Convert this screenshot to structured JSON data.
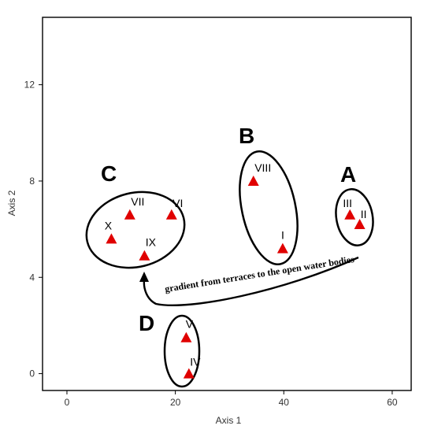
{
  "chart_data": {
    "type": "scatter",
    "title": "",
    "xlabel": "Axis 1",
    "ylabel": "Axis 2",
    "xlim": [
      -4.5,
      63.5
    ],
    "ylim": [
      -0.7,
      14.8
    ],
    "xticks": [
      0,
      20,
      40,
      60
    ],
    "yticks": [
      0,
      4,
      8,
      12
    ],
    "grid": false,
    "marker_color": "#e00000",
    "points": [
      {
        "label": "I",
        "x": 39.8,
        "y": 5.2
      },
      {
        "label": "II",
        "x": 54,
        "y": 6.2
      },
      {
        "label": "III",
        "x": 52.2,
        "y": 6.6
      },
      {
        "label": "IV",
        "x": 22.5,
        "y": 0
      },
      {
        "label": "V",
        "x": 22,
        "y": 1.5
      },
      {
        "label": "VI",
        "x": 19.3,
        "y": 6.6
      },
      {
        "label": "VII",
        "x": 11.6,
        "y": 6.6
      },
      {
        "label": "VIII",
        "x": 34.4,
        "y": 8
      },
      {
        "label": "IX",
        "x": 14.3,
        "y": 4.9
      },
      {
        "label": "X",
        "x": 8.2,
        "y": 5.6
      }
    ],
    "groups": [
      {
        "label": "A",
        "members": [
          "II",
          "III"
        ]
      },
      {
        "label": "B",
        "members": [
          "VIII",
          "I"
        ]
      },
      {
        "label": "C",
        "members": [
          "X",
          "VII",
          "VI",
          "IX"
        ]
      },
      {
        "label": "D",
        "members": [
          "V",
          "IV"
        ]
      }
    ],
    "annotation": "gradient from terraces to the open water bodies"
  }
}
